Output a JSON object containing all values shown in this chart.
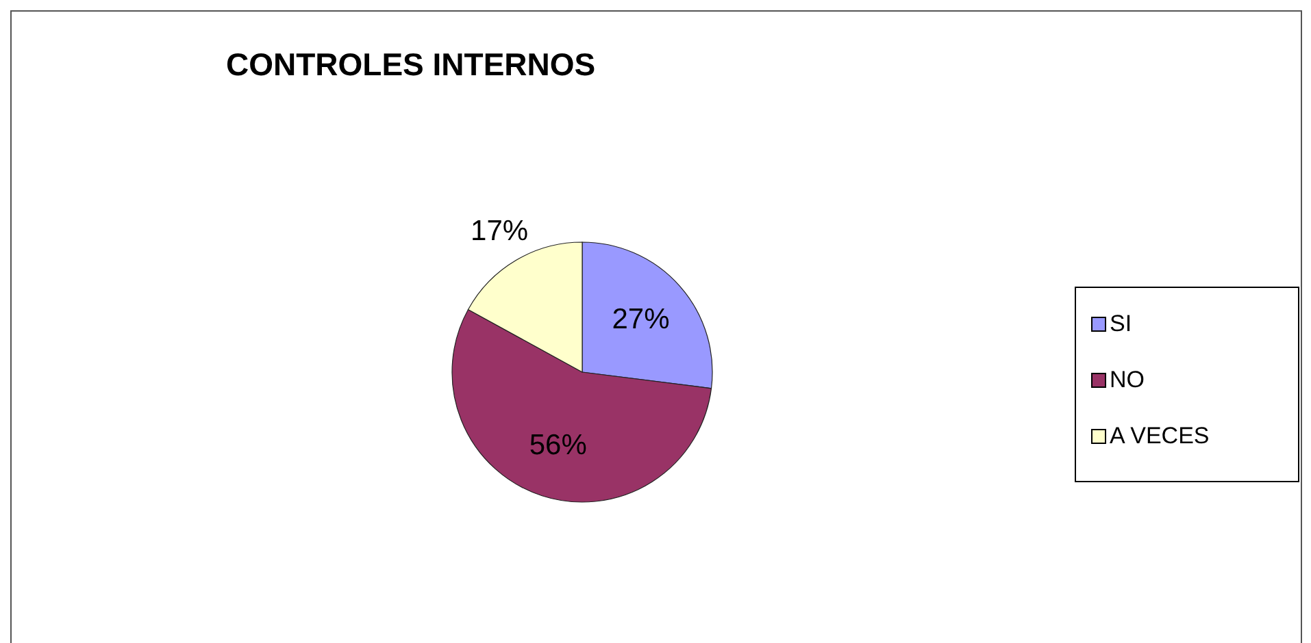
{
  "chart_data": {
    "type": "pie",
    "title": "CONTROLES INTERNOS",
    "categories": [
      "SI",
      "NO",
      "A VECES"
    ],
    "values": [
      27,
      56,
      17
    ],
    "value_labels": [
      "27%",
      "56%",
      "17%"
    ],
    "colors": [
      "#9999ff",
      "#993366",
      "#ffffcc"
    ],
    "legend": "right"
  }
}
